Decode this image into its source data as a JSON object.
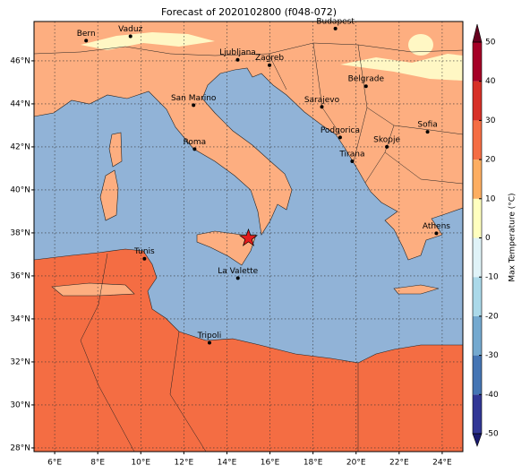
{
  "title": "Forecast of 2020102800 (f048-072)",
  "map": {
    "xlim": [
      5.04,
      24.96
    ],
    "ylim": [
      27.83,
      47.83
    ],
    "grid": true,
    "xticks": [
      {
        "value": 6,
        "label": "6°E"
      },
      {
        "value": 8,
        "label": "8°E"
      },
      {
        "value": 10,
        "label": "10°E"
      },
      {
        "value": 12,
        "label": "12°E"
      },
      {
        "value": 14,
        "label": "14°E"
      },
      {
        "value": 16,
        "label": "16°E"
      },
      {
        "value": 18,
        "label": "18°E"
      },
      {
        "value": 20,
        "label": "20°E"
      },
      {
        "value": 22,
        "label": "22°E"
      },
      {
        "value": 24,
        "label": "24°E"
      }
    ],
    "yticks": [
      {
        "value": 28,
        "label": "28°N"
      },
      {
        "value": 30,
        "label": "30°N"
      },
      {
        "value": 32,
        "label": "32°N"
      },
      {
        "value": 34,
        "label": "34°N"
      },
      {
        "value": 36,
        "label": "36°N"
      },
      {
        "value": 38,
        "label": "38°N"
      },
      {
        "value": 40,
        "label": "40°N"
      },
      {
        "value": 42,
        "label": "42°N"
      },
      {
        "value": 44,
        "label": "44°N"
      },
      {
        "value": 46,
        "label": "46°N"
      }
    ]
  },
  "cities": [
    {
      "label": "Bern",
      "lon": 7.46,
      "lat": 46.94
    },
    {
      "label": "Vaduz",
      "lon": 9.52,
      "lat": 47.14
    },
    {
      "label": "Budapest",
      "lon": 19.04,
      "lat": 47.5
    },
    {
      "label": "Ljubljana",
      "lon": 14.5,
      "lat": 46.05
    },
    {
      "label": "Zagreb",
      "lon": 15.98,
      "lat": 45.8
    },
    {
      "label": "Belgrade",
      "lon": 20.46,
      "lat": 44.82
    },
    {
      "label": "San Marino",
      "lon": 12.45,
      "lat": 43.94
    },
    {
      "label": "Sarajevo",
      "lon": 18.41,
      "lat": 43.86
    },
    {
      "label": "Sofia",
      "lon": 23.32,
      "lat": 42.7
    },
    {
      "label": "Podgorica",
      "lon": 19.26,
      "lat": 42.44
    },
    {
      "label": "Skopje",
      "lon": 21.43,
      "lat": 42.0
    },
    {
      "label": "Roma",
      "lon": 12.5,
      "lat": 41.9
    },
    {
      "label": "Tirana",
      "lon": 19.82,
      "lat": 41.33
    },
    {
      "label": "Athens",
      "lon": 23.73,
      "lat": 37.98
    },
    {
      "label": "Tunis",
      "lon": 10.17,
      "lat": 36.8
    },
    {
      "label": "La Valette",
      "lon": 14.51,
      "lat": 35.9
    },
    {
      "label": "Tripoli",
      "lon": 13.19,
      "lat": 32.89
    }
  ],
  "marker": {
    "lon": 15.0,
    "lat": 37.75,
    "color": "#e31a1c"
  },
  "colorbar": {
    "label": "Max Temperature (°C)",
    "lim": [
      -50,
      50
    ],
    "ticks": [
      -50,
      -40,
      -30,
      -20,
      -10,
      0,
      10,
      20,
      30,
      40,
      50
    ],
    "colors": [
      "#313695",
      "#4575b4",
      "#74a9cf",
      "#abd9e9",
      "#e0f3f8",
      "#ffffbf",
      "#fdae61",
      "#f46d43",
      "#d73027",
      "#a50026"
    ],
    "under": "#1a1a6e",
    "over": "#67001f"
  }
}
